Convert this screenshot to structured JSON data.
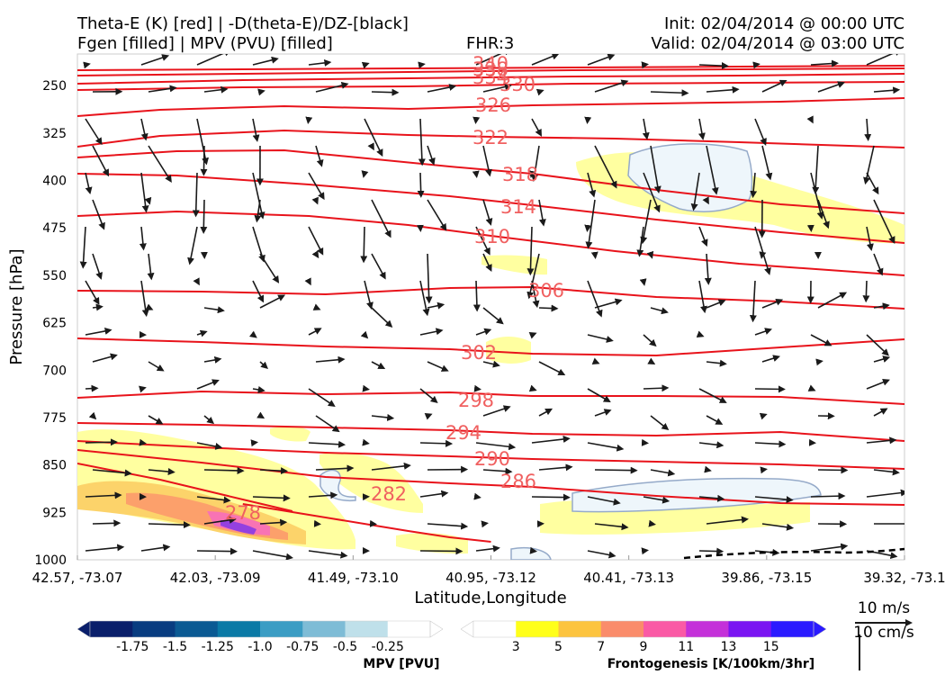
{
  "header": {
    "title_line1": "Theta-E (K) [red] | -D(theta-E)/DZ-[black]",
    "title_line2": "Fgen [filled] | MPV (PVU) [filled]",
    "fhr": "FHR:3",
    "init": "Init: 02/04/2014 @ 00:00 UTC",
    "valid": "Valid: 02/04/2014 @ 03:00 UTC"
  },
  "chart_data": {
    "type": "cross-section",
    "xlabel": "Latitude,Longitude",
    "ylabel": "Pressure [hPa]",
    "x_ticks": [
      "42.57, -73.07",
      "42.03, -73.09",
      "41.49, -73.10",
      "40.95, -73.12",
      "40.41, -73.13",
      "39.86, -73.15",
      "39.32, -73.1"
    ],
    "y_ticks": [
      250,
      325,
      400,
      475,
      550,
      625,
      700,
      775,
      850,
      925,
      1000
    ],
    "ylim": [
      1000,
      200
    ],
    "theta_e_contours": [
      {
        "label": "340",
        "pts": [
          [
            0,
            78
          ],
          [
            20,
            77
          ],
          [
            40,
            76
          ],
          [
            60,
            75
          ],
          [
            80,
            74
          ],
          [
            100,
            73
          ]
        ]
      },
      {
        "label": "338",
        "pts": [
          [
            0,
            84
          ],
          [
            20,
            82
          ],
          [
            40,
            80
          ],
          [
            60,
            78
          ],
          [
            80,
            77
          ],
          [
            100,
            76
          ]
        ]
      },
      {
        "label": "334",
        "pts": [
          [
            0,
            93
          ],
          [
            20,
            89
          ],
          [
            40,
            87
          ],
          [
            60,
            85
          ],
          [
            80,
            84
          ],
          [
            100,
            82
          ]
        ]
      },
      {
        "label": "330",
        "pts": [
          [
            0,
            100
          ],
          [
            20,
            97
          ],
          [
            40,
            96
          ],
          [
            60,
            93
          ],
          [
            80,
            92
          ],
          [
            100,
            91
          ]
        ]
      },
      {
        "label": "326",
        "pts": [
          [
            0,
            129
          ],
          [
            10,
            122
          ],
          [
            25,
            118
          ],
          [
            40,
            121
          ],
          [
            55,
            117
          ],
          [
            70,
            115
          ],
          [
            85,
            113
          ],
          [
            100,
            109
          ]
        ]
      },
      {
        "label": "322",
        "pts": [
          [
            0,
            163
          ],
          [
            10,
            151
          ],
          [
            25,
            145
          ],
          [
            40,
            150
          ],
          [
            50,
            152
          ],
          [
            65,
            154
          ],
          [
            80,
            158
          ],
          [
            100,
            164
          ]
        ]
      },
      {
        "label": "318",
        "pts": [
          [
            0,
            175
          ],
          [
            12,
            168
          ],
          [
            25,
            167
          ],
          [
            45,
            185
          ],
          [
            55,
            193
          ],
          [
            70,
            211
          ],
          [
            85,
            227
          ],
          [
            100,
            237
          ]
        ]
      },
      {
        "label": "314",
        "pts": [
          [
            0,
            193
          ],
          [
            12,
            195
          ],
          [
            28,
            205
          ],
          [
            45,
            218
          ],
          [
            55,
            228
          ],
          [
            70,
            244
          ],
          [
            85,
            258
          ],
          [
            100,
            270
          ]
        ]
      },
      {
        "label": "310",
        "pts": [
          [
            0,
            240
          ],
          [
            12,
            235
          ],
          [
            28,
            240
          ],
          [
            40,
            250
          ],
          [
            50,
            262
          ],
          [
            65,
            279
          ],
          [
            80,
            293
          ],
          [
            100,
            306
          ]
        ]
      },
      {
        "label": "306",
        "pts": [
          [
            0,
            323
          ],
          [
            15,
            324
          ],
          [
            30,
            327
          ],
          [
            45,
            320
          ],
          [
            55,
            319
          ],
          [
            70,
            330
          ],
          [
            85,
            335
          ],
          [
            100,
            343
          ]
        ]
      },
      {
        "label": "302",
        "pts": [
          [
            0,
            376
          ],
          [
            15,
            380
          ],
          [
            30,
            385
          ],
          [
            45,
            388
          ],
          [
            55,
            393
          ],
          [
            70,
            395
          ],
          [
            85,
            386
          ],
          [
            100,
            377
          ]
        ]
      },
      {
        "label": "298",
        "pts": [
          [
            0,
            442
          ],
          [
            15,
            435
          ],
          [
            30,
            438
          ],
          [
            45,
            436
          ],
          [
            55,
            440
          ],
          [
            70,
            440
          ],
          [
            85,
            441
          ],
          [
            100,
            449
          ]
        ]
      },
      {
        "label": "294",
        "pts": [
          [
            0,
            470
          ],
          [
            15,
            472
          ],
          [
            30,
            475
          ],
          [
            45,
            478
          ],
          [
            55,
            482
          ],
          [
            70,
            484
          ],
          [
            85,
            480
          ],
          [
            100,
            490
          ]
        ]
      },
      {
        "label": "290",
        "pts": [
          [
            0,
            490
          ],
          [
            15,
            497
          ],
          [
            30,
            503
          ],
          [
            45,
            507
          ],
          [
            55,
            510
          ],
          [
            70,
            513
          ],
          [
            85,
            516
          ],
          [
            100,
            521
          ]
        ]
      },
      {
        "label": "286",
        "pts": [
          [
            0,
            500
          ],
          [
            15,
            514
          ],
          [
            30,
            530
          ],
          [
            45,
            537
          ],
          [
            55,
            541
          ],
          [
            70,
            551
          ],
          [
            85,
            559
          ],
          [
            100,
            561
          ]
        ]
      },
      {
        "label": "282",
        "pts": [
          [
            20,
            560
          ],
          [
            30,
            575
          ],
          [
            40,
            590
          ],
          [
            45,
            597
          ],
          [
            50,
            602
          ]
        ]
      },
      {
        "label": "278",
        "pts": [
          [
            0,
            515
          ],
          [
            10,
            533
          ],
          [
            20,
            555
          ],
          [
            26,
            568
          ]
        ]
      }
    ],
    "contour_label_positions": [
      [
        "340",
        545,
        71
      ],
      [
        "338",
        545,
        77
      ],
      [
        "334",
        545,
        86
      ],
      [
        "330",
        575,
        94
      ],
      [
        "326",
        548,
        117
      ],
      [
        "322",
        545,
        153
      ],
      [
        "318",
        578,
        194
      ],
      [
        "314",
        576,
        230
      ],
      [
        "310",
        547,
        263
      ],
      [
        "306",
        607,
        323
      ],
      [
        "302",
        532,
        392
      ],
      [
        "298",
        529,
        445
      ],
      [
        "294",
        515,
        481
      ],
      [
        "290",
        547,
        510
      ],
      [
        "286",
        576,
        535
      ],
      [
        "282",
        432,
        549
      ],
      [
        "278",
        270,
        570
      ]
    ],
    "frontogenesis_colorbar": {
      "label": "Frontogenesis [K/100km/3hr]",
      "ticks": [
        "3",
        "5",
        "7",
        "9",
        "11",
        "13",
        "15"
      ],
      "colors": [
        "#ffffff",
        "#ffff1a",
        "#fcc43f",
        "#fa8c6b",
        "#fa5aa5",
        "#c431d9",
        "#7a14f2",
        "#2a1aff"
      ]
    },
    "mpv_colorbar": {
      "label": "MPV [PVU]",
      "ticks": [
        "-1.75",
        "-1.5",
        "-1.25",
        "-1.0",
        "-0.75",
        "-0.5",
        "-0.25"
      ],
      "colors": [
        "#0a1f6b",
        "#083c80",
        "#0b5a93",
        "#0b7aa6",
        "#3b9dc4",
        "#7ebcd6",
        "#bfe0ea",
        "#ffffff"
      ]
    },
    "vector_scale": {
      "upper": "10 m/s",
      "lower": "10 cm/s"
    },
    "grid": false
  },
  "colors": {
    "theta_e": "#e8131b",
    "wind": "#1a1a1a",
    "fgen_light": "#ffffa0",
    "fgen_yellow": "#f5f08c",
    "mpv_light": "#eef6fb",
    "mpv_outline": "#95aac9"
  }
}
